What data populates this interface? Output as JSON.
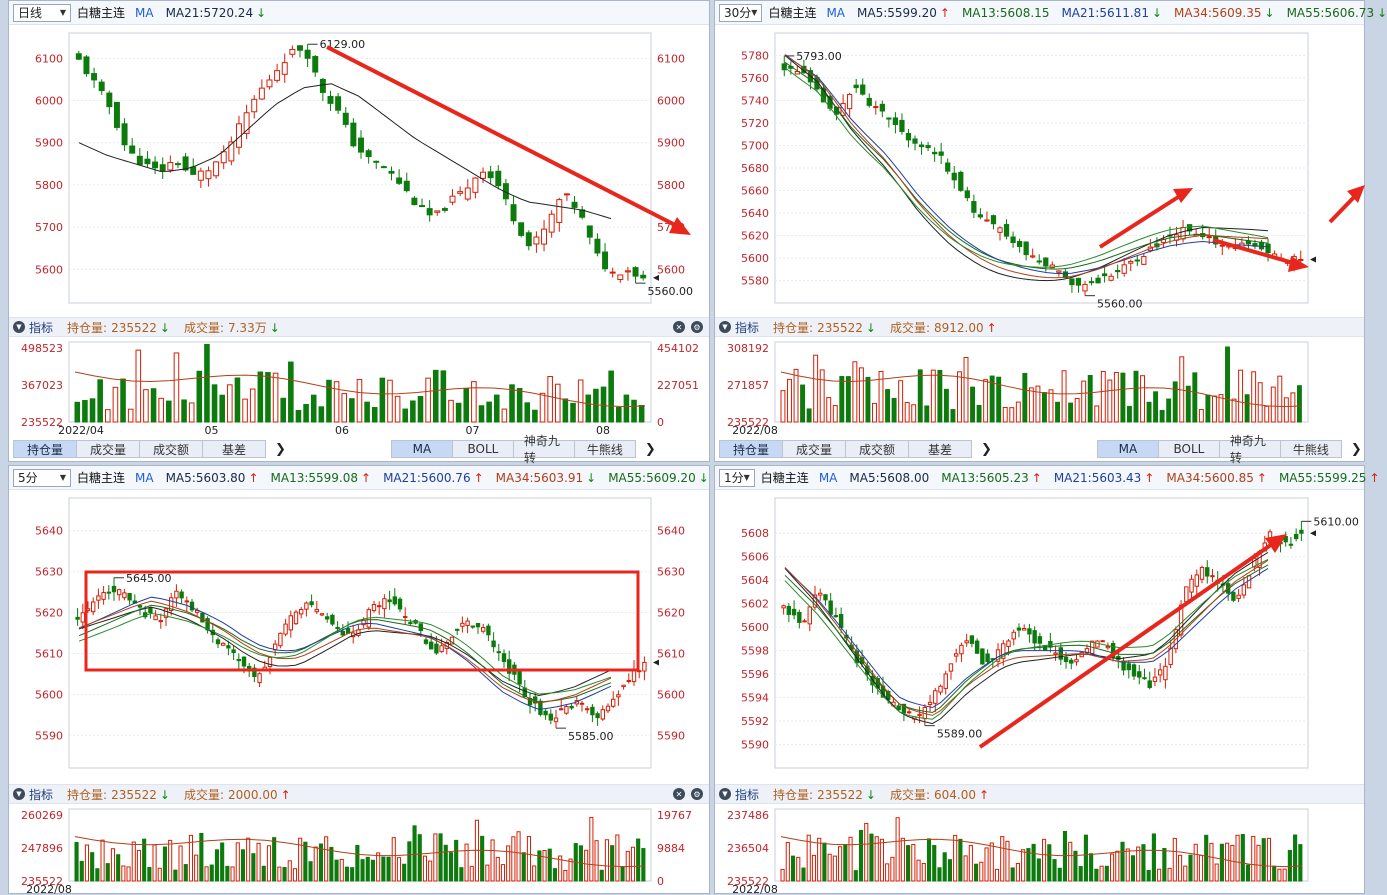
{
  "panels": [
    {
      "id": "daily",
      "period": "日线",
      "symbol": "白糖主连",
      "ma_tag": "MA",
      "ma_items": [
        {
          "label": "MA21:5720.24",
          "dir": "↓",
          "color": "#1a2a4a",
          "dir_color": "#0a8a0a"
        }
      ],
      "chart_data": {
        "type": "candlestick",
        "ylim": [
          5520,
          6160
        ],
        "y_ticks": [
          5600,
          5700,
          5800,
          5900,
          6000,
          6100
        ],
        "right_ticks": [
          "5600",
          "5700",
          "5800",
          "5900",
          "6000",
          "6100"
        ],
        "high_label": "6129.00",
        "low_label": "5560.00",
        "seed": 11,
        "count": 75,
        "path": [
          6095,
          6040,
          5980,
          5880,
          5850,
          5830,
          5860,
          5820,
          5835,
          5870,
          5940,
          6010,
          6060,
          6110,
          6128,
          6030,
          5980,
          5900,
          5860,
          5840,
          5800,
          5750,
          5720,
          5760,
          5790,
          5840,
          5800,
          5720,
          5650,
          5700,
          5780,
          5740,
          5640,
          5590,
          5600,
          5580
        ],
        "ma_path": [
          5900,
          5870,
          5850,
          5830,
          5840,
          5870,
          5930,
          5990,
          6030,
          6040,
          6010,
          5960,
          5910,
          5870,
          5830,
          5790,
          5760,
          5750,
          5740,
          5720
        ],
        "ma_color": "#222",
        "volume": {
          "left_ticks": [
            "498523",
            "367023",
            "235522"
          ],
          "right_ticks": [
            "454102",
            "227051",
            "0"
          ],
          "x_labels": [
            "2022/04",
            "05",
            "06",
            "07",
            "08"
          ]
        }
      },
      "indicator": {
        "label": "指标",
        "items": [
          {
            "name": "持仓量:",
            "value": "235522",
            "dir": "↓",
            "dir_color": "#0a8a0a"
          },
          {
            "name": "成交量:",
            "value": "7.33万",
            "dir": "↓",
            "dir_color": "#0a8a0a"
          }
        ]
      },
      "tabs_left": [
        "持仓量",
        "成交量",
        "成交额",
        "基差"
      ],
      "tabs_right": [
        "MA",
        "BOLL",
        "神奇九转",
        "牛熊线"
      ]
    },
    {
      "id": "min30",
      "period": "30分",
      "symbol": "白糖主连",
      "ma_tag": "MA",
      "ma_items": [
        {
          "label": "MA5:5599.20",
          "dir": "↑",
          "color": "#1a2a4a",
          "dir_color": "#d81e06"
        },
        {
          "label": "MA13:5608.15",
          "dir": "",
          "color": "#1a6a1a",
          "dir_color": "#d81e06"
        },
        {
          "label": "MA21:5611.81",
          "dir": "↓",
          "color": "#1f3fa0",
          "dir_color": "#0a8a0a"
        },
        {
          "label": "MA34:5609.35",
          "dir": "↓",
          "color": "#b0401a",
          "dir_color": "#0a8a0a"
        },
        {
          "label": "MA55:5606.73",
          "dir": "↓",
          "color": "#1a6a1a",
          "dir_color": "#0a8a0a"
        }
      ],
      "chart_data": {
        "type": "candlestick",
        "ylim": [
          5560,
          5800
        ],
        "y_ticks": [
          5580,
          5600,
          5620,
          5640,
          5660,
          5680,
          5700,
          5720,
          5740,
          5760,
          5780
        ],
        "right_ticks": [],
        "high_label": "5793.00",
        "low_label": "5560.00",
        "seed": 23,
        "count": 80,
        "path": [
          5770,
          5765,
          5745,
          5725,
          5755,
          5735,
          5725,
          5710,
          5700,
          5690,
          5670,
          5640,
          5630,
          5620,
          5605,
          5595,
          5590,
          5575,
          5580,
          5585,
          5595,
          5605,
          5615,
          5625,
          5620,
          5615,
          5610,
          5612,
          5605,
          5598,
          5600
        ],
        "ma_path": [
          5780,
          5760,
          5720,
          5690,
          5650,
          5620,
          5600,
          5590,
          5585,
          5590,
          5600,
          5610,
          5615,
          5612,
          5610
        ],
        "ma_color": "#1f3fa0",
        "volume": {
          "left_ticks": [
            "308192",
            "271857",
            "235522"
          ],
          "right_ticks": [],
          "x_labels": [
            "2022/08"
          ]
        }
      },
      "indicator": {
        "label": "指标",
        "items": [
          {
            "name": "持仓量:",
            "value": "235522",
            "dir": "↓",
            "dir_color": "#0a8a0a"
          },
          {
            "name": "成交量:",
            "value": "8912.00",
            "dir": "↑",
            "dir_color": "#d81e06"
          }
        ]
      },
      "tabs_left": [
        "持仓量",
        "成交量",
        "成交额",
        "基差"
      ],
      "tabs_right": [
        "MA",
        "BOLL",
        "神奇九转",
        "牛熊线"
      ]
    },
    {
      "id": "min5",
      "period": "5分",
      "symbol": "白糖主连",
      "ma_tag": "MA",
      "ma_items": [
        {
          "label": "MA5:5603.80",
          "dir": "↑",
          "color": "#1a2a4a",
          "dir_color": "#d81e06"
        },
        {
          "label": "MA13:5599.08",
          "dir": "↑",
          "color": "#1a6a1a",
          "dir_color": "#d81e06"
        },
        {
          "label": "MA21:5600.76",
          "dir": "↑",
          "color": "#1f3fa0",
          "dir_color": "#d81e06"
        },
        {
          "label": "MA34:5603.91",
          "dir": "↓",
          "color": "#b0401a",
          "dir_color": "#0a8a0a"
        },
        {
          "label": "MA55:5609.20",
          "dir": "↓",
          "color": "#1a6a1a",
          "dir_color": "#0a8a0a"
        }
      ],
      "chart_data": {
        "type": "candlestick",
        "ylim": [
          5582,
          5648
        ],
        "y_ticks": [
          5590,
          5600,
          5610,
          5620,
          5630,
          5640
        ],
        "right_ticks": [
          "5590",
          "5600",
          "5610",
          "5620",
          "5630",
          "5640"
        ],
        "high_label": "5645.00",
        "low_label": "5585.00",
        "seed": 37,
        "count": 110,
        "path": [
          5618,
          5622,
          5626,
          5624,
          5620,
          5618,
          5625,
          5622,
          5616,
          5612,
          5608,
          5604,
          5610,
          5618,
          5622,
          5620,
          5616,
          5614,
          5620,
          5624,
          5620,
          5616,
          5610,
          5614,
          5618,
          5616,
          5610,
          5604,
          5598,
          5594,
          5596,
          5598,
          5594,
          5598,
          5604,
          5608
        ],
        "ma_path": [
          5616,
          5620,
          5624,
          5622,
          5618,
          5612,
          5610,
          5614,
          5618,
          5616,
          5614,
          5608,
          5600,
          5596,
          5598,
          5602
        ],
        "ma_color": "#1f3fa0",
        "volume": {
          "left_ticks": [
            "260269",
            "247896",
            "235522"
          ],
          "right_ticks": [
            "19767",
            "9884",
            "0"
          ],
          "x_labels": [
            "2022/08"
          ]
        }
      },
      "indicator": {
        "label": "指标",
        "items": [
          {
            "name": "持仓量:",
            "value": "235522",
            "dir": "↓",
            "dir_color": "#0a8a0a"
          },
          {
            "name": "成交量:",
            "value": "2000.00",
            "dir": "↑",
            "dir_color": "#d81e06"
          }
        ]
      }
    },
    {
      "id": "min1",
      "period": "1分",
      "symbol": "白糖主连",
      "ma_tag": "MA",
      "ma_items": [
        {
          "label": "MA5:5608.00",
          "dir": "",
          "color": "#1a2a4a",
          "dir_color": "#d81e06"
        },
        {
          "label": "MA13:5605.23",
          "dir": "↑",
          "color": "#1a6a1a",
          "dir_color": "#d81e06"
        },
        {
          "label": "MA21:5603.43",
          "dir": "↑",
          "color": "#1f3fa0",
          "dir_color": "#d81e06"
        },
        {
          "label": "MA34:5600.85",
          "dir": "↑",
          "color": "#b0401a",
          "dir_color": "#d81e06"
        },
        {
          "label": "MA55:5599.25",
          "dir": "↑",
          "color": "#1a6a1a",
          "dir_color": "#d81e06"
        }
      ],
      "chart_data": {
        "type": "candlestick",
        "ylim": [
          5588,
          5611
        ],
        "y_ticks": [
          5590,
          5592,
          5594,
          5596,
          5598,
          5600,
          5602,
          5604,
          5606,
          5608
        ],
        "right_ticks": [],
        "high_label": "5610.00",
        "low_label": "5589.00",
        "seed": 51,
        "count": 100,
        "path": [
          5602,
          5600,
          5603,
          5601,
          5598,
          5596,
          5594,
          5593,
          5592,
          5594,
          5597,
          5599,
          5597,
          5598,
          5600,
          5599,
          5598,
          5597,
          5598,
          5599,
          5597,
          5596,
          5595,
          5597,
          5603,
          5605,
          5604,
          5602,
          5605,
          5608,
          5607,
          5608
        ],
        "ma_path": [
          5605,
          5602,
          5598,
          5594,
          5593,
          5596,
          5598,
          5598,
          5598,
          5597,
          5597,
          5600,
          5603,
          5605
        ],
        "ma_color": "#1f3fa0",
        "volume": {
          "left_ticks": [
            "237486",
            "236504",
            "235522"
          ],
          "right_ticks": [],
          "x_labels": [
            "2022/08"
          ]
        }
      },
      "indicator": {
        "label": "指标",
        "items": [
          {
            "name": "持仓量:",
            "value": "235522",
            "dir": "↓",
            "dir_color": "#0a8a0a"
          },
          {
            "name": "成交量:",
            "value": "604.00",
            "dir": "↑",
            "dir_color": "#d81e06"
          }
        ]
      }
    }
  ]
}
